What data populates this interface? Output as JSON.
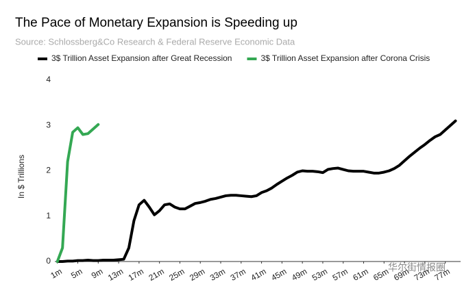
{
  "chart_data": {
    "type": "line",
    "title": "The Pace of Monetary Expansion is Speeding up",
    "subtitle": "Source: Schlossberg&Co Research & Federal Reserve Economic Data",
    "y_label": "In $ Trillions",
    "watermark": "华尔街情报圈",
    "legend_position": "top",
    "xlim": [
      0.5,
      80
    ],
    "ylim": [
      0,
      4
    ],
    "yticks": [
      0,
      1,
      2,
      3,
      4
    ],
    "xticks": [
      {
        "value": 1,
        "label": "1m"
      },
      {
        "value": 5,
        "label": "5m"
      },
      {
        "value": 9,
        "label": "9m"
      },
      {
        "value": 13,
        "label": "13m"
      },
      {
        "value": 17,
        "label": "17m"
      },
      {
        "value": 21,
        "label": "21m"
      },
      {
        "value": 25,
        "label": "25m"
      },
      {
        "value": 29,
        "label": "29m"
      },
      {
        "value": 33,
        "label": "33m"
      },
      {
        "value": 37,
        "label": "37m"
      },
      {
        "value": 41,
        "label": "41m"
      },
      {
        "value": 45,
        "label": "45m"
      },
      {
        "value": 49,
        "label": "49m"
      },
      {
        "value": 53,
        "label": "53m"
      },
      {
        "value": 57,
        "label": "57m"
      },
      {
        "value": 61,
        "label": "61m"
      },
      {
        "value": 65,
        "label": "65m"
      },
      {
        "value": 69,
        "label": "69m"
      },
      {
        "value": 73,
        "label": "73m"
      },
      {
        "value": 77,
        "label": "77m"
      }
    ],
    "series": [
      {
        "name": "3$ Trillion Asset Expansion after Great Recession",
        "color": "#000000",
        "x": [
          1,
          2,
          3,
          4,
          5,
          6,
          7,
          8,
          9,
          10,
          11,
          12,
          13,
          14,
          15,
          16,
          17,
          18,
          19,
          20,
          21,
          22,
          23,
          24,
          25,
          26,
          27,
          28,
          29,
          30,
          31,
          32,
          33,
          34,
          35,
          36,
          37,
          38,
          39,
          40,
          41,
          42,
          43,
          44,
          45,
          46,
          47,
          48,
          49,
          50,
          51,
          52,
          53,
          54,
          55,
          56,
          57,
          58,
          59,
          60,
          61,
          62,
          63,
          64,
          65,
          66,
          67,
          68,
          69,
          70,
          71,
          72,
          73,
          74,
          75,
          76,
          77,
          78,
          79
        ],
        "values": [
          0,
          0,
          0.01,
          0.01,
          0.02,
          0.02,
          0.03,
          0.02,
          0.02,
          0.03,
          0.03,
          0.03,
          0.04,
          0.05,
          0.3,
          0.9,
          1.25,
          1.35,
          1.2,
          1.03,
          1.12,
          1.25,
          1.27,
          1.2,
          1.16,
          1.16,
          1.22,
          1.28,
          1.3,
          1.33,
          1.37,
          1.39,
          1.42,
          1.45,
          1.46,
          1.46,
          1.45,
          1.44,
          1.43,
          1.45,
          1.52,
          1.56,
          1.62,
          1.7,
          1.77,
          1.84,
          1.9,
          1.97,
          2.0,
          1.99,
          1.99,
          1.98,
          1.96,
          2.03,
          2.05,
          2.06,
          2.03,
          2.0,
          1.99,
          1.99,
          1.99,
          1.97,
          1.95,
          1.95,
          1.97,
          2.0,
          2.05,
          2.12,
          2.22,
          2.32,
          2.41,
          2.5,
          2.58,
          2.67,
          2.75,
          2.8,
          2.9,
          3.0,
          3.1
        ]
      },
      {
        "name": "3$ Trillion Asset Expansion after Corona Crisis",
        "color": "#34a853",
        "x": [
          1,
          2,
          3,
          4,
          5,
          6,
          7,
          8,
          9
        ],
        "values": [
          0,
          0.3,
          2.2,
          2.85,
          2.95,
          2.8,
          2.82,
          2.92,
          3.02
        ]
      }
    ]
  }
}
